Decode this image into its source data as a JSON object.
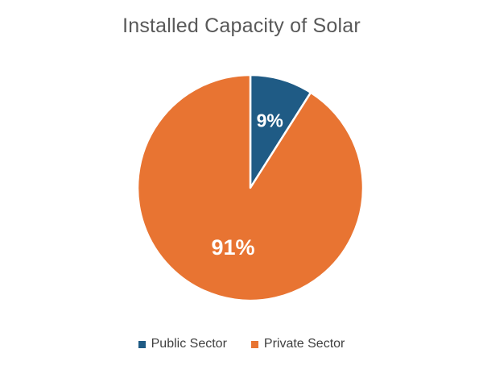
{
  "chart_data": {
    "type": "pie",
    "title": "Installed Capacity of Solar",
    "categories": [
      "Public Sector",
      "Private Sector"
    ],
    "values": [
      9,
      91
    ],
    "data_labels": [
      "9%",
      "91%"
    ],
    "colors": [
      "#1f5b85",
      "#e87432"
    ],
    "legend_position": "bottom"
  }
}
